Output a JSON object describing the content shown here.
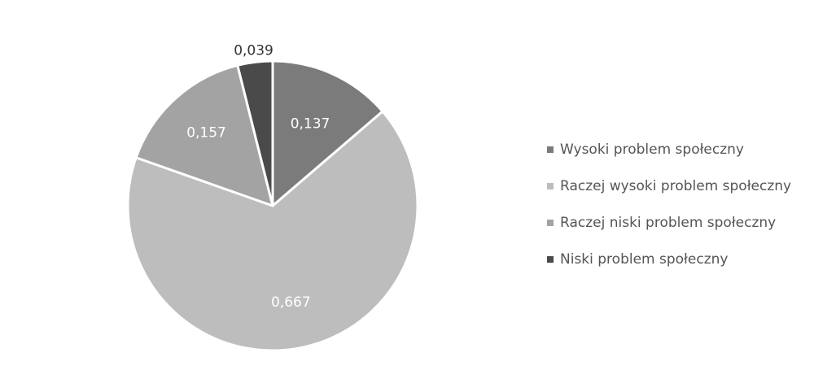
{
  "chart_data": {
    "type": "pie",
    "categories": [
      "Wysoki problem społeczny",
      "Raczej wysoki problem społeczny",
      "Raczej niski problem społeczny",
      "Niski problem społeczny"
    ],
    "values": [
      0.137,
      0.667,
      0.157,
      0.039
    ],
    "value_labels": [
      "0,137",
      "0,667",
      "0,157",
      "0,039"
    ],
    "colors": [
      "#7b7b7b",
      "#bdbdbd",
      "#a3a3a3",
      "#4a4a4a"
    ],
    "label_colors": [
      "#ffffff",
      "#ffffff",
      "#ffffff",
      "#333333"
    ],
    "start_angle_deg": 0,
    "direction": "clockwise",
    "legend_position": "right",
    "title": "",
    "slice_separator_color": "#ffffff"
  },
  "legend": {
    "items": [
      {
        "label": "Wysoki problem społeczny",
        "color": "#7b7b7b"
      },
      {
        "label": "Raczej wysoki problem społeczny",
        "color": "#bdbdbd"
      },
      {
        "label": "Raczej niski problem społeczny",
        "color": "#a3a3a3"
      },
      {
        "label": "Niski problem społeczny",
        "color": "#4a4a4a"
      }
    ]
  }
}
